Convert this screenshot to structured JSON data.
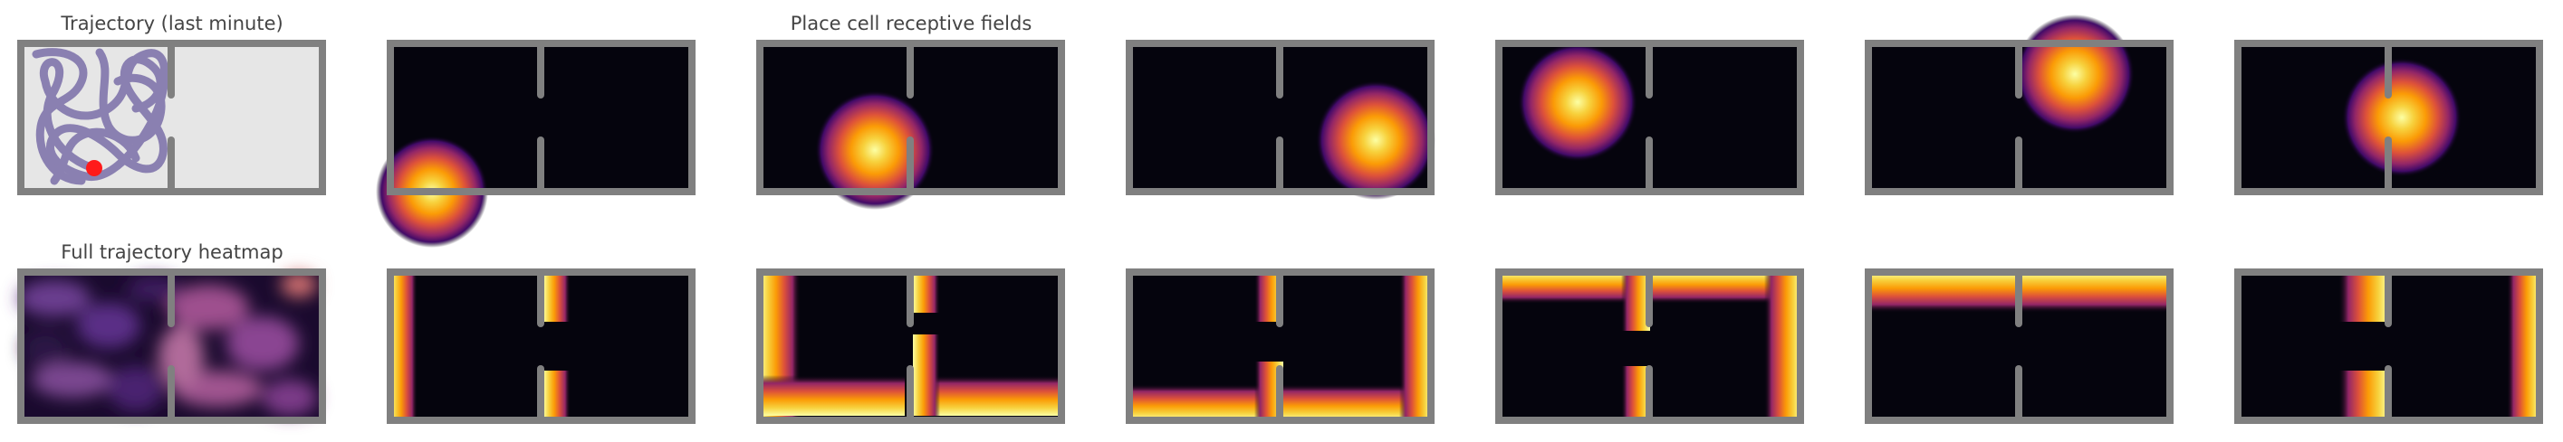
{
  "titles": {
    "trajectory": "Trajectory (last minute)",
    "receptive_fields": "Place cell receptive fields",
    "heatmap": "Full trajectory heatmap"
  },
  "colors": {
    "wall": "#808080",
    "floor_light": "#e6e6e6",
    "trajectory": "#7b6fa8",
    "agent": "#ff1a1a",
    "field_background": "#05040d"
  },
  "colormap": "inferno",
  "environment": "two rooms connected by a doorway in a central wall",
  "place_cells": [
    {
      "row": "top",
      "field": "blob",
      "room": "left",
      "location": "bottom-left corner"
    },
    {
      "row": "top",
      "field": "blob",
      "room": "left",
      "location": "bottom-right near doorway"
    },
    {
      "row": "top",
      "field": "blob",
      "room": "right",
      "location": "lower-right"
    },
    {
      "row": "top",
      "field": "blob",
      "room": "left",
      "location": "upper-middle"
    },
    {
      "row": "top",
      "field": "blob",
      "room": "right",
      "location": "top-left"
    },
    {
      "row": "top",
      "field": "blob",
      "room": "both",
      "location": "doorway"
    },
    {
      "row": "bottom",
      "field": "boundary",
      "walls": "left wall and doorway"
    },
    {
      "row": "bottom",
      "field": "boundary",
      "walls": "left, bottom and doorway"
    },
    {
      "row": "bottom",
      "field": "boundary",
      "walls": "bottom and right"
    },
    {
      "row": "bottom",
      "field": "boundary",
      "walls": "top, right and doorway"
    },
    {
      "row": "bottom",
      "field": "boundary",
      "walls": "top wall"
    },
    {
      "row": "bottom",
      "field": "boundary",
      "walls": "right wall and doorway"
    }
  ]
}
